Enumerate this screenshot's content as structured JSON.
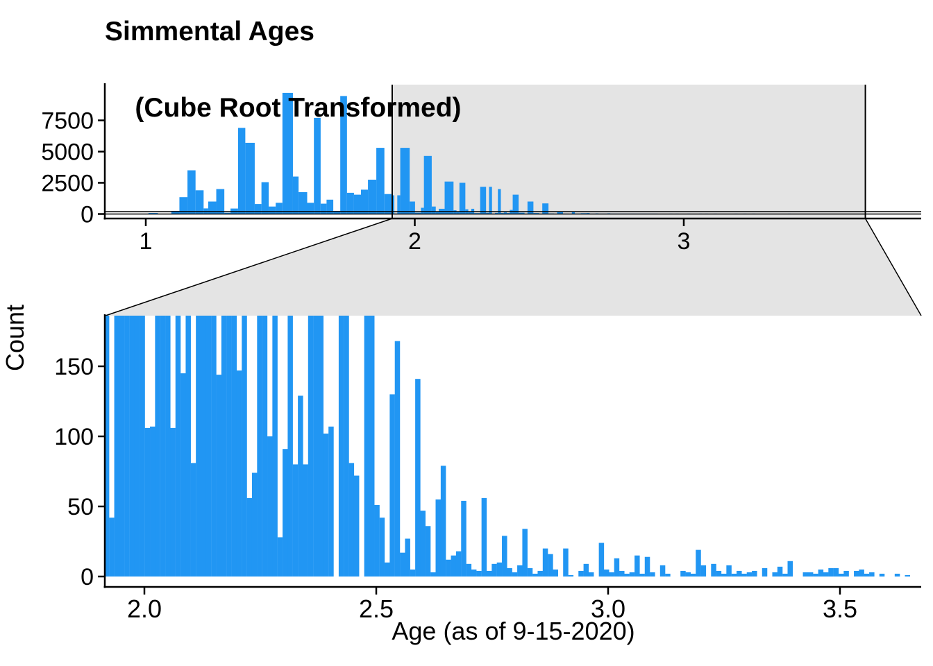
{
  "title": {
    "line1": "Simmental Ages",
    "line2": "(Cube Root Transformed)"
  },
  "colors": {
    "bar": "#2196F3",
    "zoom_shade": "#E4E4E4",
    "axis": "#000000",
    "background": "#FFFFFF"
  },
  "chart_data": {
    "type": "bar",
    "title": "Simmental Ages (Cube Root Transformed)",
    "xlabel": "Age (as of 9-15-2020)",
    "ylabel": "Count",
    "legend": "none",
    "grid": false,
    "bar_color": "#2196F3",
    "zoom_shade_color": "#E4E4E4",
    "overview": {
      "xlim": [
        0.85,
        3.88
      ],
      "ylim": [
        0,
        10500
      ],
      "xticks": [
        "1",
        "2",
        "3"
      ],
      "xtick_values": [
        1,
        2,
        3
      ],
      "yticks": [
        "0",
        "2500",
        "5000",
        "7500"
      ],
      "ytick_values": [
        0,
        2500,
        5000,
        7500
      ],
      "bars": [
        [
          1.01,
          1.045,
          80
        ],
        [
          1.095,
          1.125,
          250
        ],
        [
          1.125,
          1.155,
          1350
        ],
        [
          1.155,
          1.185,
          3500
        ],
        [
          1.185,
          1.215,
          1900
        ],
        [
          1.215,
          1.232,
          450
        ],
        [
          1.232,
          1.262,
          1000
        ],
        [
          1.262,
          1.292,
          2000
        ],
        [
          1.292,
          1.315,
          100
        ],
        [
          1.315,
          1.343,
          440
        ],
        [
          1.343,
          1.37,
          6900
        ],
        [
          1.37,
          1.405,
          5700
        ],
        [
          1.405,
          1.43,
          800
        ],
        [
          1.43,
          1.457,
          2550
        ],
        [
          1.457,
          1.483,
          600
        ],
        [
          1.483,
          1.508,
          900
        ],
        [
          1.508,
          1.547,
          9700
        ],
        [
          1.547,
          1.568,
          3000
        ],
        [
          1.568,
          1.6,
          1750
        ],
        [
          1.6,
          1.625,
          900
        ],
        [
          1.625,
          1.65,
          7700
        ],
        [
          1.65,
          1.672,
          830
        ],
        [
          1.672,
          1.697,
          1150
        ],
        [
          1.697,
          1.723,
          250
        ],
        [
          1.723,
          1.748,
          9450
        ],
        [
          1.748,
          1.774,
          1700
        ],
        [
          1.774,
          1.8,
          1550
        ],
        [
          1.8,
          1.826,
          1950
        ],
        [
          1.826,
          1.857,
          2750
        ],
        [
          1.857,
          1.887,
          5300
        ],
        [
          1.887,
          1.913,
          1600
        ],
        [
          1.913,
          1.924,
          1500
        ],
        [
          1.924,
          1.935,
          42
        ],
        [
          1.935,
          1.946,
          1500
        ],
        [
          1.946,
          1.981,
          5300
        ],
        [
          1.981,
          2.001,
          1000
        ],
        [
          2.001,
          2.023,
          107
        ],
        [
          2.023,
          2.034,
          500
        ],
        [
          2.034,
          2.063,
          4650
        ],
        [
          2.063,
          2.078,
          600
        ],
        [
          2.078,
          2.089,
          145
        ],
        [
          2.089,
          2.111,
          420
        ],
        [
          2.111,
          2.144,
          2600
        ],
        [
          2.144,
          2.155,
          300
        ],
        [
          2.155,
          2.166,
          144
        ],
        [
          2.166,
          2.188,
          2500
        ],
        [
          2.188,
          2.199,
          380
        ],
        [
          2.199,
          2.21,
          147
        ],
        [
          2.21,
          2.221,
          420
        ],
        [
          2.221,
          2.243,
          75
        ],
        [
          2.243,
          2.265,
          2180
        ],
        [
          2.265,
          2.276,
          100
        ],
        [
          2.276,
          2.287,
          2180
        ],
        [
          2.287,
          2.298,
          28
        ],
        [
          2.298,
          2.309,
          91
        ],
        [
          2.309,
          2.32,
          2000
        ],
        [
          2.32,
          2.331,
          80
        ],
        [
          2.331,
          2.342,
          129
        ],
        [
          2.342,
          2.353,
          80
        ],
        [
          2.353,
          2.364,
          330
        ],
        [
          2.364,
          2.386,
          1550
        ],
        [
          2.386,
          2.408,
          105
        ],
        [
          2.419,
          2.441,
          1000
        ],
        [
          2.441,
          2.463,
          78
        ],
        [
          2.474,
          2.497,
          850
        ],
        [
          2.497,
          2.518,
          46
        ],
        [
          2.529,
          2.551,
          150
        ],
        [
          2.551,
          2.573,
          22
        ],
        [
          2.584,
          2.595,
          141
        ],
        [
          2.595,
          2.617,
          42
        ],
        [
          2.617,
          2.639,
          67
        ],
        [
          2.639,
          2.65,
          79
        ],
        [
          2.65,
          2.672,
          16
        ],
        [
          2.672,
          2.683,
          54
        ],
        [
          2.683,
          2.716,
          7
        ],
        [
          2.716,
          2.727,
          56
        ],
        [
          2.727,
          2.76,
          8
        ],
        [
          2.76,
          2.771,
          29
        ],
        [
          2.771,
          2.804,
          6
        ],
        [
          2.804,
          2.815,
          34
        ],
        [
          2.815,
          2.837,
          5
        ],
        [
          2.837,
          2.859,
          12
        ],
        [
          2.859,
          2.881,
          18
        ],
        [
          2.881,
          2.903,
          20
        ],
        [
          2.947,
          2.958,
          9
        ],
        [
          2.969,
          2.981,
          24
        ],
        [
          3.013,
          3.024,
          13
        ],
        [
          3.057,
          3.068,
          15
        ],
        [
          3.079,
          3.09,
          14
        ],
        [
          3.112,
          3.123,
          8
        ],
        [
          3.189,
          3.2,
          19
        ],
        [
          3.222,
          3.233,
          9
        ],
        [
          3.255,
          3.266,
          8
        ],
        [
          3.387,
          3.398,
          11
        ]
      ]
    },
    "zoom": {
      "xlim": [
        1.916,
        3.675
      ],
      "ylim": [
        0,
        186
      ],
      "xticks": [
        "2.0",
        "2.5",
        "3.0",
        "3.5"
      ],
      "xtick_values": [
        2.0,
        2.5,
        3.0,
        3.5
      ],
      "yticks": [
        "0",
        "50",
        "100",
        "150"
      ],
      "ytick_values": [
        0,
        50,
        100,
        150
      ],
      "binwidth": 0.0112,
      "bars": [
        [
          1.913,
          1500
        ],
        [
          1.924,
          42
        ],
        [
          1.935,
          1500
        ],
        [
          1.946,
          5300
        ],
        [
          1.957,
          5300
        ],
        [
          1.968,
          5300
        ],
        [
          1.979,
          2500
        ],
        [
          1.99,
          1000
        ],
        [
          2.001,
          106
        ],
        [
          2.012,
          107
        ],
        [
          2.023,
          500
        ],
        [
          2.034,
          4650
        ],
        [
          2.045,
          4650
        ],
        [
          2.056,
          106
        ],
        [
          2.067,
          600
        ],
        [
          2.078,
          145
        ],
        [
          2.089,
          420
        ],
        [
          2.1,
          81
        ],
        [
          2.111,
          2600
        ],
        [
          2.122,
          2600
        ],
        [
          2.133,
          2600
        ],
        [
          2.144,
          300
        ],
        [
          2.155,
          144
        ],
        [
          2.166,
          2500
        ],
        [
          2.177,
          2500
        ],
        [
          2.188,
          380
        ],
        [
          2.199,
          147
        ],
        [
          2.21,
          420
        ],
        [
          2.221,
          56
        ],
        [
          2.232,
          74
        ],
        [
          2.243,
          2180
        ],
        [
          2.254,
          2180
        ],
        [
          2.265,
          100
        ],
        [
          2.276,
          2180
        ],
        [
          2.287,
          28
        ],
        [
          2.298,
          91
        ],
        [
          2.309,
          2000
        ],
        [
          2.32,
          80
        ],
        [
          2.331,
          129
        ],
        [
          2.342,
          80
        ],
        [
          2.353,
          330
        ],
        [
          2.364,
          1550
        ],
        [
          2.375,
          1550
        ],
        [
          2.386,
          102
        ],
        [
          2.397,
          107
        ],
        [
          2.408,
          0
        ],
        [
          2.419,
          1000
        ],
        [
          2.43,
          1000
        ],
        [
          2.441,
          81
        ],
        [
          2.452,
          72
        ],
        [
          2.463,
          0
        ],
        [
          2.474,
          850
        ],
        [
          2.485,
          850
        ],
        [
          2.496,
          51
        ],
        [
          2.507,
          42
        ],
        [
          2.518,
          10
        ],
        [
          2.529,
          130
        ],
        [
          2.54,
          168
        ],
        [
          2.551,
          17
        ],
        [
          2.562,
          27
        ],
        [
          2.573,
          5
        ],
        [
          2.584,
          141
        ],
        [
          2.595,
          47
        ],
        [
          2.606,
          36
        ],
        [
          2.617,
          3
        ],
        [
          2.628,
          55
        ],
        [
          2.639,
          79
        ],
        [
          2.65,
          12
        ],
        [
          2.661,
          15
        ],
        [
          2.672,
          18
        ],
        [
          2.683,
          54
        ],
        [
          2.694,
          9
        ],
        [
          2.705,
          5
        ],
        [
          2.716,
          4
        ],
        [
          2.727,
          56
        ],
        [
          2.738,
          4
        ],
        [
          2.749,
          9
        ],
        [
          2.76,
          10
        ],
        [
          2.771,
          29
        ],
        [
          2.782,
          6
        ],
        [
          2.793,
          3
        ],
        [
          2.804,
          8
        ],
        [
          2.815,
          34
        ],
        [
          2.826,
          6
        ],
        [
          2.837,
          2
        ],
        [
          2.848,
          4
        ],
        [
          2.859,
          20
        ],
        [
          2.87,
          16
        ],
        [
          2.881,
          5
        ],
        [
          2.892,
          0
        ],
        [
          2.903,
          20
        ],
        [
          2.914,
          1
        ],
        [
          2.925,
          0
        ],
        [
          2.936,
          4
        ],
        [
          2.947,
          9
        ],
        [
          2.958,
          3
        ],
        [
          2.969,
          0
        ],
        [
          2.98,
          24
        ],
        [
          2.991,
          5
        ],
        [
          3.002,
          3
        ],
        [
          3.013,
          13
        ],
        [
          3.024,
          4
        ],
        [
          3.035,
          2
        ],
        [
          3.046,
          3
        ],
        [
          3.057,
          15
        ],
        [
          3.068,
          2
        ],
        [
          3.079,
          14
        ],
        [
          3.09,
          3
        ],
        [
          3.101,
          0
        ],
        [
          3.112,
          8
        ],
        [
          3.123,
          2
        ],
        [
          3.134,
          0
        ],
        [
          3.145,
          0
        ],
        [
          3.156,
          4
        ],
        [
          3.167,
          3
        ],
        [
          3.178,
          2
        ],
        [
          3.189,
          19
        ],
        [
          3.2,
          8
        ],
        [
          3.211,
          0
        ],
        [
          3.222,
          9
        ],
        [
          3.233,
          4
        ],
        [
          3.244,
          2
        ],
        [
          3.255,
          8
        ],
        [
          3.266,
          2
        ],
        [
          3.277,
          4
        ],
        [
          3.288,
          2
        ],
        [
          3.299,
          3
        ],
        [
          3.31,
          4
        ],
        [
          3.321,
          0
        ],
        [
          3.332,
          6
        ],
        [
          3.343,
          0
        ],
        [
          3.354,
          3
        ],
        [
          3.365,
          7
        ],
        [
          3.376,
          2
        ],
        [
          3.387,
          11
        ],
        [
          3.398,
          0
        ],
        [
          3.409,
          0
        ],
        [
          3.42,
          3
        ],
        [
          3.431,
          3
        ],
        [
          3.442,
          2
        ],
        [
          3.453,
          5
        ],
        [
          3.464,
          3
        ],
        [
          3.475,
          6
        ],
        [
          3.486,
          6
        ],
        [
          3.497,
          2
        ],
        [
          3.508,
          4
        ],
        [
          3.519,
          0
        ],
        [
          3.53,
          4
        ],
        [
          3.541,
          5
        ],
        [
          3.552,
          2
        ],
        [
          3.563,
          3
        ],
        [
          3.574,
          0
        ],
        [
          3.585,
          2
        ],
        [
          3.596,
          0
        ],
        [
          3.607,
          0
        ],
        [
          3.618,
          2
        ],
        [
          3.629,
          0
        ],
        [
          3.64,
          1
        ]
      ]
    },
    "zoom_indicator": {
      "x_range": [
        1.916,
        3.675
      ],
      "y_range": [
        0,
        186
      ]
    }
  }
}
